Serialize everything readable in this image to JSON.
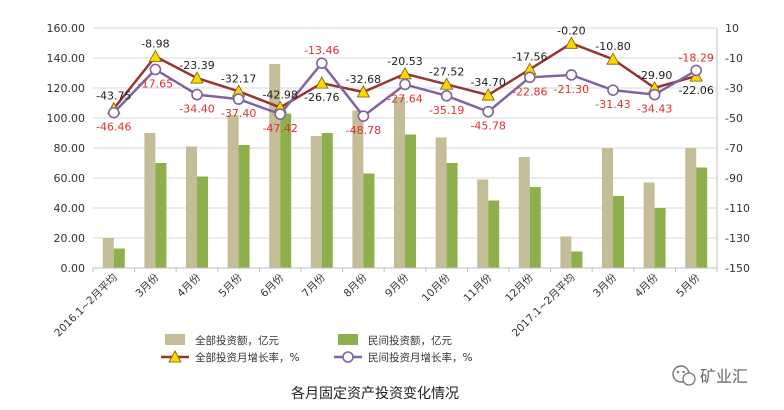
{
  "chart_data": {
    "type": "bar",
    "title": "各月固定资产投资变化情况",
    "categories": [
      "2016.1~2月平均",
      "3月份",
      "4月份",
      "5月份",
      "6月份",
      "7月份",
      "8月份",
      "9月份",
      "10月份",
      "11月份",
      "12月份",
      "2017.1~2月平均",
      "3月份",
      "4月份",
      "5月份"
    ],
    "left_axis": {
      "ylim": [
        0,
        160
      ],
      "ticks": [
        "0.00",
        "20.00",
        "40.00",
        "60.00",
        "80.00",
        "100.00",
        "120.00",
        "140.00",
        "160.00"
      ]
    },
    "right_axis": {
      "ylim": [
        -150,
        10
      ],
      "ticks": [
        "-150",
        "-130",
        "-110",
        "-90",
        "-70",
        "-50",
        "-30",
        "-10",
        "10"
      ]
    },
    "series": [
      {
        "name": "全部投资额，亿元",
        "type": "bar",
        "axis": "left",
        "color": "#c4bd97",
        "values": [
          20,
          90,
          81,
          102,
          136,
          88,
          105,
          114,
          87,
          59,
          74,
          21,
          80,
          57,
          80
        ]
      },
      {
        "name": "民间投资额，亿元",
        "type": "bar",
        "axis": "left",
        "color": "#8db04d",
        "values": [
          13,
          70,
          61,
          82,
          103,
          90,
          63,
          89,
          70,
          45,
          54,
          11,
          48,
          40,
          67
        ]
      },
      {
        "name": "全部投资月增长率，%",
        "type": "line",
        "axis": "right",
        "color": "#943634",
        "marker": "triangle",
        "marker_color": "#ffd700",
        "values": [
          -43.75,
          -8.98,
          -23.39,
          -32.17,
          -42.98,
          -26.76,
          -32.68,
          -20.53,
          -27.52,
          -34.7,
          -17.56,
          -0.2,
          -10.8,
          -29.9,
          -22.06
        ],
        "labels": [
          "-43.75",
          "-8.98",
          "-23.39",
          "-32.17",
          "-42.98",
          "-26.76",
          "-32.68",
          "-20.53",
          "-27.52",
          "-34.70",
          "-17.56",
          "-0.20",
          "-10.80",
          "-29.90",
          "-22.06"
        ]
      },
      {
        "name": "民间投资月增长率，%",
        "type": "line",
        "axis": "right",
        "color": "#8064a2",
        "marker": "circle",
        "marker_color": "#ffffff",
        "values": [
          -46.46,
          -17.65,
          -34.4,
          -37.4,
          -47.42,
          -13.46,
          -48.78,
          -27.64,
          -35.19,
          -45.78,
          -22.86,
          -21.3,
          -31.43,
          -34.43,
          -18.29
        ],
        "labels": [
          "-46.46",
          "-17.65",
          "-34.40",
          "-37.40",
          "-47.42",
          "-13.46",
          "-48.78",
          "-27.64",
          "-35.19",
          "-45.78",
          "-22.86",
          "-21.30",
          "-31.43",
          "-34.43",
          "-18.29"
        ]
      }
    ],
    "legend_position": "bottom",
    "grid": true
  },
  "watermark": {
    "text": "矿业汇",
    "icon": "wechat-icon"
  }
}
